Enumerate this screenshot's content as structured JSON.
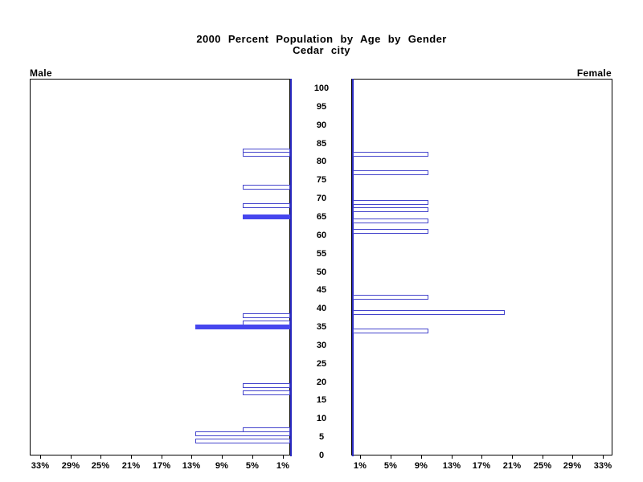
{
  "title": {
    "line1": "2000 Percent Population by Age by Gender",
    "line2": "Cedar city"
  },
  "panel_labels": {
    "male": "Male",
    "female": "Female"
  },
  "chart_data": {
    "type": "bar",
    "subtype": "population-pyramid",
    "title": "2000 Percent Population by Age by Gender",
    "subtitle": "Cedar city",
    "legend": "none",
    "grid": false,
    "age_axis": {
      "min": 0,
      "max": 100,
      "tick_step": 5,
      "tick_labels": [
        "100",
        "95",
        "90",
        "85",
        "80",
        "75",
        "70",
        "65",
        "60",
        "55",
        "50",
        "45",
        "40",
        "35",
        "30",
        "25",
        "20",
        "15",
        "10",
        "5",
        "0"
      ]
    },
    "pct_axis": {
      "unit": "%",
      "male_tick_values": [
        33,
        29,
        25,
        21,
        17,
        13,
        9,
        5,
        1
      ],
      "male_tick_labels": [
        "33%",
        "29%",
        "25%",
        "21%",
        "17%",
        "13%",
        "9%",
        "5%",
        "1%"
      ],
      "female_tick_values": [
        1,
        5,
        9,
        13,
        17,
        21,
        25,
        29,
        33
      ],
      "female_tick_labels": [
        "1%",
        "5%",
        "9%",
        "13%",
        "17%",
        "21%",
        "25%",
        "29%",
        "33%"
      ]
    },
    "series": [
      {
        "name": "Male",
        "side": "left",
        "bars": [
          {
            "age": 83,
            "value": 6.25,
            "filled": false
          },
          {
            "age": 82,
            "value": 6.25,
            "filled": false
          },
          {
            "age": 73,
            "value": 6.25,
            "filled": false
          },
          {
            "age": 68,
            "value": 6.25,
            "filled": false
          },
          {
            "age": 65,
            "value": 6.25,
            "filled": true
          },
          {
            "age": 38,
            "value": 6.25,
            "filled": false
          },
          {
            "age": 36,
            "value": 6.25,
            "filled": false
          },
          {
            "age": 35,
            "value": 12.5,
            "filled": true
          },
          {
            "age": 19,
            "value": 6.25,
            "filled": false
          },
          {
            "age": 17,
            "value": 6.25,
            "filled": false
          },
          {
            "age": 7,
            "value": 6.25,
            "filled": false
          },
          {
            "age": 6,
            "value": 12.5,
            "filled": false
          },
          {
            "age": 4,
            "value": 12.5,
            "filled": false
          }
        ]
      },
      {
        "name": "Female",
        "side": "right",
        "bars": [
          {
            "age": 82,
            "value": 10,
            "filled": false
          },
          {
            "age": 77,
            "value": 10,
            "filled": false
          },
          {
            "age": 69,
            "value": 10,
            "filled": false
          },
          {
            "age": 67,
            "value": 10,
            "filled": false
          },
          {
            "age": 64,
            "value": 10,
            "filled": false
          },
          {
            "age": 61,
            "value": 10,
            "filled": false
          },
          {
            "age": 43,
            "value": 10,
            "filled": false
          },
          {
            "age": 39,
            "value": 20,
            "filled": false
          },
          {
            "age": 34,
            "value": 10,
            "filled": false
          }
        ]
      }
    ],
    "colors": {
      "bar_outline": "#4444cc",
      "bar_fill": "#4646ee",
      "center_axis_line": "#2a2ac0",
      "frame": "#000000",
      "text": "#000000",
      "background": "#ffffff"
    }
  }
}
